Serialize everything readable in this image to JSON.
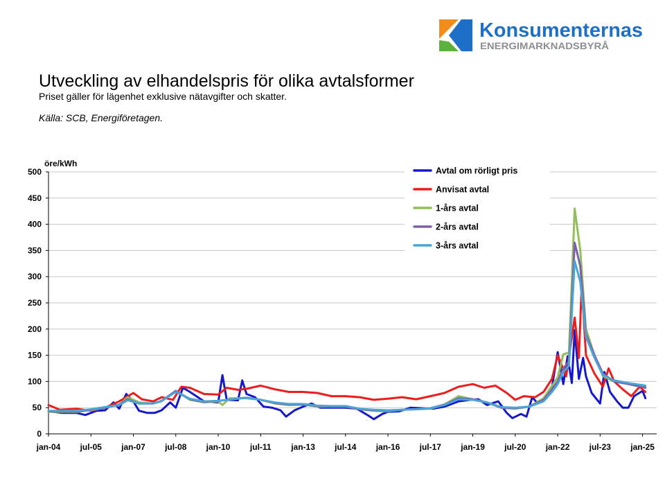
{
  "logo": {
    "name": "Konsumenternas",
    "tagline": "ENERGIMARKNADSBYRÅ",
    "brand_color": "#1e6fc8",
    "tagline_color": "#8a8f96"
  },
  "title": "Utveckling av elhandelspris för olika avtalsformer",
  "subtitle": "Priset gäller för lägenhet exklusive nätavgifter och skatter.",
  "source": "Källa: SCB, Energiföretagen.",
  "chart_data": {
    "type": "line",
    "title": "Utveckling av elhandelspris för olika avtalsformer",
    "ylabel": "öre/kWh",
    "xlabel": "",
    "ylim": [
      0,
      500
    ],
    "yticks": [
      0,
      50,
      100,
      150,
      200,
      250,
      300,
      350,
      400,
      450,
      500
    ],
    "xlim": [
      2004.0,
      2025.5
    ],
    "xticks": [
      {
        "label": "jan-04",
        "x": 2004.0
      },
      {
        "label": "jul-05",
        "x": 2005.5
      },
      {
        "label": "jan-07",
        "x": 2007.0
      },
      {
        "label": "jul-08",
        "x": 2008.5
      },
      {
        "label": "jan-10",
        "x": 2010.0
      },
      {
        "label": "jul-11",
        "x": 2011.5
      },
      {
        "label": "jan-13",
        "x": 2013.0
      },
      {
        "label": "jul-14",
        "x": 2014.5
      },
      {
        "label": "jan-16",
        "x": 2016.0
      },
      {
        "label": "jul-17",
        "x": 2017.5
      },
      {
        "label": "jan-19",
        "x": 2019.0
      },
      {
        "label": "jul-20",
        "x": 2020.5
      },
      {
        "label": "jan-22",
        "x": 2022.0
      },
      {
        "label": "jul-23",
        "x": 2023.5
      },
      {
        "label": "jan-25",
        "x": 2025.0
      }
    ],
    "grid": "horizontal",
    "legend_position": "top-right",
    "series": [
      {
        "name": "Avtal om rörligt pris",
        "color": "#1418c8",
        "points": [
          [
            2004.0,
            43
          ],
          [
            2004.5,
            40
          ],
          [
            2005.0,
            40
          ],
          [
            2005.3,
            36
          ],
          [
            2005.7,
            44
          ],
          [
            2006.0,
            45
          ],
          [
            2006.3,
            60
          ],
          [
            2006.5,
            48
          ],
          [
            2006.75,
            76
          ],
          [
            2007.0,
            62
          ],
          [
            2007.2,
            44
          ],
          [
            2007.5,
            40
          ],
          [
            2007.75,
            40
          ],
          [
            2008.0,
            45
          ],
          [
            2008.3,
            60
          ],
          [
            2008.5,
            50
          ],
          [
            2008.75,
            88
          ],
          [
            2009.0,
            80
          ],
          [
            2009.5,
            62
          ],
          [
            2010.0,
            60
          ],
          [
            2010.15,
            112
          ],
          [
            2010.3,
            65
          ],
          [
            2010.7,
            64
          ],
          [
            2010.85,
            102
          ],
          [
            2011.0,
            76
          ],
          [
            2011.3,
            70
          ],
          [
            2011.6,
            52
          ],
          [
            2011.9,
            50
          ],
          [
            2012.2,
            45
          ],
          [
            2012.4,
            33
          ],
          [
            2012.7,
            45
          ],
          [
            2013.0,
            52
          ],
          [
            2013.3,
            58
          ],
          [
            2013.6,
            50
          ],
          [
            2014.0,
            50
          ],
          [
            2014.5,
            50
          ],
          [
            2014.9,
            48
          ],
          [
            2015.3,
            35
          ],
          [
            2015.5,
            28
          ],
          [
            2015.8,
            38
          ],
          [
            2016.0,
            42
          ],
          [
            2016.4,
            43
          ],
          [
            2016.8,
            50
          ],
          [
            2017.2,
            49
          ],
          [
            2017.6,
            48
          ],
          [
            2018.0,
            52
          ],
          [
            2018.5,
            62
          ],
          [
            2018.9,
            65
          ],
          [
            2019.2,
            66
          ],
          [
            2019.5,
            55
          ],
          [
            2019.9,
            62
          ],
          [
            2020.2,
            40
          ],
          [
            2020.4,
            30
          ],
          [
            2020.7,
            38
          ],
          [
            2020.9,
            33
          ],
          [
            2021.1,
            70
          ],
          [
            2021.3,
            58
          ],
          [
            2021.6,
            68
          ],
          [
            2021.8,
            90
          ],
          [
            2022.0,
            156
          ],
          [
            2022.2,
            95
          ],
          [
            2022.35,
            148
          ],
          [
            2022.5,
            97
          ],
          [
            2022.6,
            198
          ],
          [
            2022.75,
            105
          ],
          [
            2022.9,
            145
          ],
          [
            2023.0,
            110
          ],
          [
            2023.2,
            78
          ],
          [
            2023.5,
            58
          ],
          [
            2023.65,
            118
          ],
          [
            2023.85,
            80
          ],
          [
            2024.1,
            62
          ],
          [
            2024.3,
            50
          ],
          [
            2024.5,
            50
          ],
          [
            2024.7,
            72
          ],
          [
            2025.0,
            82
          ],
          [
            2025.1,
            68
          ]
        ]
      },
      {
        "name": "Anvisat avtal",
        "color": "#ee1c1c",
        "points": [
          [
            2004.0,
            55
          ],
          [
            2004.4,
            46
          ],
          [
            2005.0,
            48
          ],
          [
            2005.5,
            44
          ],
          [
            2006.0,
            50
          ],
          [
            2006.5,
            62
          ],
          [
            2007.0,
            78
          ],
          [
            2007.3,
            66
          ],
          [
            2007.7,
            62
          ],
          [
            2008.0,
            70
          ],
          [
            2008.4,
            65
          ],
          [
            2008.7,
            90
          ],
          [
            2009.0,
            88
          ],
          [
            2009.5,
            76
          ],
          [
            2010.0,
            75
          ],
          [
            2010.3,
            88
          ],
          [
            2010.7,
            84
          ],
          [
            2011.0,
            86
          ],
          [
            2011.5,
            92
          ],
          [
            2012.0,
            85
          ],
          [
            2012.5,
            80
          ],
          [
            2013.0,
            80
          ],
          [
            2013.5,
            78
          ],
          [
            2014.0,
            72
          ],
          [
            2014.5,
            72
          ],
          [
            2015.0,
            70
          ],
          [
            2015.5,
            65
          ],
          [
            2016.0,
            67
          ],
          [
            2016.5,
            70
          ],
          [
            2017.0,
            66
          ],
          [
            2017.5,
            72
          ],
          [
            2018.0,
            78
          ],
          [
            2018.5,
            90
          ],
          [
            2019.0,
            95
          ],
          [
            2019.4,
            88
          ],
          [
            2019.8,
            92
          ],
          [
            2020.2,
            78
          ],
          [
            2020.5,
            65
          ],
          [
            2020.8,
            72
          ],
          [
            2021.2,
            70
          ],
          [
            2021.5,
            80
          ],
          [
            2021.8,
            105
          ],
          [
            2022.0,
            150
          ],
          [
            2022.3,
            110
          ],
          [
            2022.6,
            222
          ],
          [
            2022.75,
            145
          ],
          [
            2022.85,
            285
          ],
          [
            2023.0,
            150
          ],
          [
            2023.3,
            115
          ],
          [
            2023.6,
            90
          ],
          [
            2023.8,
            125
          ],
          [
            2024.0,
            100
          ],
          [
            2024.3,
            85
          ],
          [
            2024.6,
            72
          ],
          [
            2024.9,
            90
          ],
          [
            2025.1,
            80
          ]
        ]
      },
      {
        "name": "1-års avtal",
        "color": "#94bd5e",
        "points": [
          [
            2004.0,
            42
          ],
          [
            2004.5,
            42
          ],
          [
            2005.0,
            42
          ],
          [
            2005.5,
            45
          ],
          [
            2006.0,
            50
          ],
          [
            2006.5,
            55
          ],
          [
            2006.8,
            70
          ],
          [
            2007.2,
            60
          ],
          [
            2007.7,
            58
          ],
          [
            2008.0,
            62
          ],
          [
            2008.5,
            82
          ],
          [
            2009.0,
            65
          ],
          [
            2009.5,
            60
          ],
          [
            2010.0,
            62
          ],
          [
            2010.15,
            55
          ],
          [
            2010.4,
            68
          ],
          [
            2011.0,
            68
          ],
          [
            2011.5,
            65
          ],
          [
            2012.0,
            58
          ],
          [
            2012.5,
            55
          ],
          [
            2013.0,
            56
          ],
          [
            2013.5,
            52
          ],
          [
            2014.0,
            52
          ],
          [
            2014.5,
            52
          ],
          [
            2015.0,
            47
          ],
          [
            2015.5,
            44
          ],
          [
            2016.0,
            43
          ],
          [
            2016.5,
            46
          ],
          [
            2017.0,
            47
          ],
          [
            2017.5,
            48
          ],
          [
            2018.0,
            56
          ],
          [
            2018.5,
            72
          ],
          [
            2019.0,
            66
          ],
          [
            2019.5,
            60
          ],
          [
            2020.0,
            50
          ],
          [
            2020.5,
            48
          ],
          [
            2021.0,
            52
          ],
          [
            2021.5,
            68
          ],
          [
            2021.8,
            92
          ],
          [
            2022.0,
            108
          ],
          [
            2022.2,
            152
          ],
          [
            2022.4,
            155
          ],
          [
            2022.6,
            430
          ],
          [
            2022.8,
            350
          ],
          [
            2023.0,
            200
          ],
          [
            2023.3,
            150
          ],
          [
            2023.6,
            110
          ],
          [
            2024.0,
            100
          ],
          [
            2024.5,
            95
          ],
          [
            2025.1,
            90
          ]
        ]
      },
      {
        "name": "2-års avtal",
        "color": "#7b62a8",
        "points": [
          [
            2004.0,
            43
          ],
          [
            2004.5,
            43
          ],
          [
            2005.0,
            43
          ],
          [
            2005.5,
            46
          ],
          [
            2006.0,
            50
          ],
          [
            2006.5,
            56
          ],
          [
            2006.8,
            66
          ],
          [
            2007.2,
            58
          ],
          [
            2007.7,
            58
          ],
          [
            2008.0,
            63
          ],
          [
            2008.5,
            82
          ],
          [
            2009.0,
            66
          ],
          [
            2009.5,
            61
          ],
          [
            2010.0,
            63
          ],
          [
            2010.5,
            66
          ],
          [
            2011.0,
            69
          ],
          [
            2011.5,
            65
          ],
          [
            2012.0,
            59
          ],
          [
            2012.5,
            56
          ],
          [
            2013.0,
            56
          ],
          [
            2013.5,
            53
          ],
          [
            2014.0,
            52
          ],
          [
            2014.5,
            52
          ],
          [
            2015.0,
            47
          ],
          [
            2015.5,
            45
          ],
          [
            2016.0,
            44
          ],
          [
            2016.5,
            46
          ],
          [
            2017.0,
            47
          ],
          [
            2017.5,
            49
          ],
          [
            2018.0,
            56
          ],
          [
            2018.5,
            68
          ],
          [
            2019.0,
            66
          ],
          [
            2019.5,
            60
          ],
          [
            2020.0,
            50
          ],
          [
            2020.5,
            49
          ],
          [
            2021.0,
            52
          ],
          [
            2021.5,
            65
          ],
          [
            2021.8,
            85
          ],
          [
            2022.0,
            100
          ],
          [
            2022.2,
            125
          ],
          [
            2022.4,
            138
          ],
          [
            2022.6,
            365
          ],
          [
            2022.8,
            320
          ],
          [
            2023.0,
            190
          ],
          [
            2023.3,
            150
          ],
          [
            2023.6,
            115
          ],
          [
            2024.0,
            100
          ],
          [
            2024.5,
            95
          ],
          [
            2025.1,
            88
          ]
        ]
      },
      {
        "name": "3-års avtal",
        "color": "#4aa4d6",
        "points": [
          [
            2004.0,
            44
          ],
          [
            2004.5,
            44
          ],
          [
            2005.0,
            44
          ],
          [
            2005.5,
            47
          ],
          [
            2006.0,
            51
          ],
          [
            2006.5,
            55
          ],
          [
            2006.8,
            64
          ],
          [
            2007.2,
            58
          ],
          [
            2007.7,
            58
          ],
          [
            2008.0,
            63
          ],
          [
            2008.5,
            80
          ],
          [
            2009.0,
            67
          ],
          [
            2009.5,
            62
          ],
          [
            2010.0,
            63
          ],
          [
            2010.5,
            66
          ],
          [
            2011.0,
            69
          ],
          [
            2011.5,
            65
          ],
          [
            2012.0,
            60
          ],
          [
            2012.5,
            57
          ],
          [
            2013.0,
            57
          ],
          [
            2013.5,
            54
          ],
          [
            2014.0,
            53
          ],
          [
            2014.5,
            53
          ],
          [
            2015.0,
            48
          ],
          [
            2015.5,
            46
          ],
          [
            2016.0,
            45
          ],
          [
            2016.5,
            46
          ],
          [
            2017.0,
            47
          ],
          [
            2017.5,
            49
          ],
          [
            2018.0,
            55
          ],
          [
            2018.5,
            66
          ],
          [
            2019.0,
            65
          ],
          [
            2019.5,
            60
          ],
          [
            2020.0,
            51
          ],
          [
            2020.5,
            50
          ],
          [
            2021.0,
            52
          ],
          [
            2021.5,
            62
          ],
          [
            2021.8,
            80
          ],
          [
            2022.0,
            95
          ],
          [
            2022.2,
            118
          ],
          [
            2022.4,
            130
          ],
          [
            2022.6,
            330
          ],
          [
            2022.8,
            290
          ],
          [
            2023.0,
            185
          ],
          [
            2023.3,
            145
          ],
          [
            2023.6,
            112
          ],
          [
            2024.0,
            102
          ],
          [
            2024.5,
            97
          ],
          [
            2025.1,
            92
          ]
        ]
      }
    ]
  }
}
